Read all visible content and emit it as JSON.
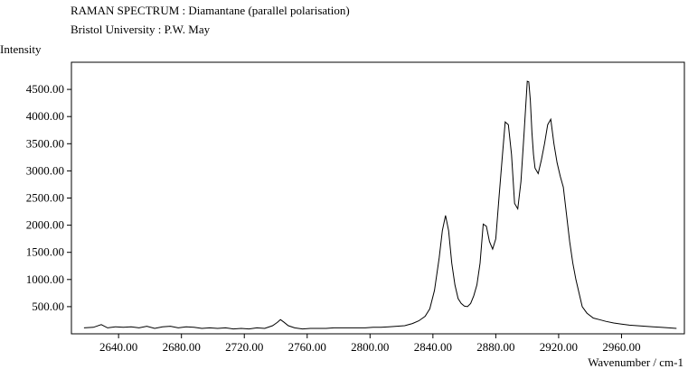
{
  "chart_data": {
    "type": "line",
    "title": "RAMAN SPECTRUM : Diamantane (parallel polarisation)",
    "subtitle": "Bristol University : P.W. May",
    "ylabel": "Intensity",
    "xlabel": "Wavenumber / cm-1",
    "xlim": [
      2610,
      3000
    ],
    "ylim": [
      0,
      5000
    ],
    "x_ticks": [
      {
        "value": 2640,
        "label": "2640.00"
      },
      {
        "value": 2680,
        "label": "2680.00"
      },
      {
        "value": 2720,
        "label": "2720.00"
      },
      {
        "value": 2760,
        "label": "2760.00"
      },
      {
        "value": 2800,
        "label": "2800.00"
      },
      {
        "value": 2840,
        "label": "2840.00"
      },
      {
        "value": 2880,
        "label": "2880.00"
      },
      {
        "value": 2920,
        "label": "2920.00"
      },
      {
        "value": 2960,
        "label": "2960.00"
      }
    ],
    "y_ticks": [
      {
        "value": 500,
        "label": "500.00"
      },
      {
        "value": 1000,
        "label": "1000.00"
      },
      {
        "value": 1500,
        "label": "1500.00"
      },
      {
        "value": 2000,
        "label": "2000.00"
      },
      {
        "value": 2500,
        "label": "2500.00"
      },
      {
        "value": 3000,
        "label": "3000.00"
      },
      {
        "value": 3500,
        "label": "3500.00"
      },
      {
        "value": 4000,
        "label": "4000.00"
      },
      {
        "value": 4500,
        "label": "4500.00"
      }
    ],
    "grid": false,
    "line_color": "#000000",
    "series": [
      {
        "x": [
          2618,
          2624,
          2629,
          2633,
          2638,
          2643,
          2648,
          2653,
          2658,
          2663,
          2668,
          2673,
          2678,
          2683,
          2688,
          2693,
          2698,
          2703,
          2708,
          2713,
          2718,
          2723,
          2728,
          2733,
          2738,
          2741,
          2743,
          2745,
          2748,
          2752,
          2757,
          2762,
          2767,
          2772,
          2777,
          2782,
          2787,
          2792,
          2797,
          2802,
          2807,
          2812,
          2817,
          2822,
          2827,
          2831,
          2835,
          2838,
          2841,
          2844,
          2846,
          2848,
          2850,
          2852,
          2854,
          2856,
          2858,
          2860,
          2862,
          2864,
          2866,
          2868,
          2870,
          2872,
          2874,
          2876,
          2878,
          2880,
          2882,
          2884,
          2886,
          2888,
          2890,
          2892,
          2894,
          2896,
          2898,
          2900,
          2901,
          2902,
          2903,
          2904,
          2905,
          2907,
          2909,
          2911,
          2913,
          2915,
          2917,
          2919,
          2921,
          2923,
          2925,
          2927,
          2929,
          2931,
          2933,
          2935,
          2938,
          2942,
          2946,
          2950,
          2955,
          2960,
          2965,
          2970,
          2975,
          2980,
          2985,
          2990,
          2995
        ],
        "y": [
          110,
          120,
          170,
          110,
          130,
          120,
          130,
          110,
          140,
          100,
          130,
          140,
          110,
          130,
          120,
          100,
          110,
          100,
          110,
          90,
          100,
          90,
          110,
          100,
          150,
          210,
          260,
          220,
          150,
          110,
          90,
          100,
          100,
          100,
          110,
          110,
          110,
          110,
          110,
          120,
          120,
          130,
          140,
          150,
          190,
          240,
          320,
          460,
          800,
          1400,
          1900,
          2180,
          1900,
          1300,
          900,
          650,
          560,
          510,
          500,
          560,
          700,
          900,
          1300,
          2020,
          1980,
          1700,
          1560,
          1750,
          2500,
          3200,
          3900,
          3850,
          3300,
          2400,
          2300,
          2800,
          3700,
          4650,
          4640,
          4300,
          3700,
          3300,
          3050,
          2950,
          3200,
          3500,
          3850,
          3950,
          3500,
          3150,
          2900,
          2700,
          2200,
          1700,
          1300,
          1000,
          750,
          500,
          380,
          290,
          260,
          230,
          200,
          180,
          160,
          150,
          140,
          130,
          120,
          110,
          100
        ]
      }
    ]
  }
}
